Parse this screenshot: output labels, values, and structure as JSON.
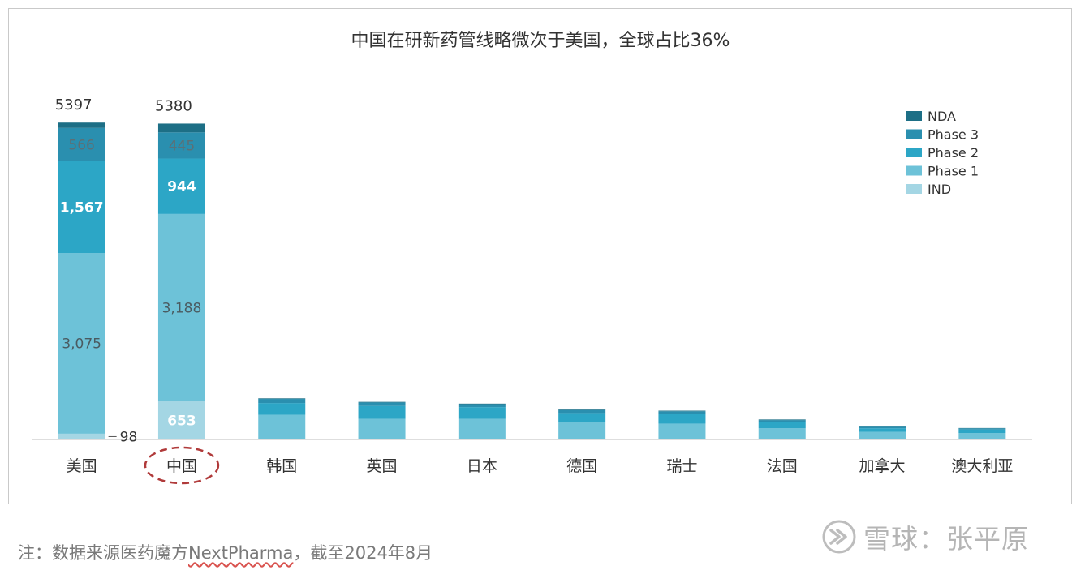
{
  "chart_data": {
    "type": "bar",
    "stacked": true,
    "title": "中国在研新药管线略微次于美国，全球占比36%",
    "categories": [
      "美国",
      "中国",
      "韩国",
      "英国",
      "日本",
      "德国",
      "瑞士",
      "法国",
      "加拿大",
      "澳大利亚"
    ],
    "series": [
      {
        "name": "IND",
        "color": "#a4d6e4",
        "values": [
          98,
          653,
          0,
          0,
          0,
          0,
          0,
          0,
          0,
          0
        ]
      },
      {
        "name": "Phase 1",
        "color": "#6dc2d8",
        "values": [
          3075,
          3188,
          420,
          350,
          350,
          300,
          270,
          190,
          130,
          110
        ]
      },
      {
        "name": "Phase 2",
        "color": "#2ca6c6",
        "values": [
          1567,
          944,
          200,
          220,
          200,
          150,
          160,
          110,
          60,
          60
        ]
      },
      {
        "name": "Phase 3",
        "color": "#2a8faf",
        "values": [
          566,
          445,
          70,
          60,
          50,
          50,
          50,
          30,
          25,
          20
        ]
      },
      {
        "name": "NDA",
        "color": "#1d6f86",
        "values": [
          91,
          150,
          10,
          10,
          10,
          10,
          10,
          10,
          5,
          5
        ]
      }
    ],
    "totals": [
      5397,
      5380,
      null,
      null,
      null,
      null,
      null,
      null,
      null,
      null
    ],
    "total_labels": [
      "5397",
      "5380"
    ],
    "segment_labels": {
      "美国": {
        "IND": "98",
        "Phase 1": "3,075",
        "Phase 2": "1,567",
        "Phase 3": "566"
      },
      "中国": {
        "IND": "653",
        "Phase 1": "3,188",
        "Phase 2": "944",
        "Phase 3": "445"
      }
    },
    "highlighted_category": "中国",
    "legend_position": "top-right",
    "ylim": [
      0,
      5400
    ],
    "grid": false
  },
  "footnote": {
    "prefix": "注：数据来源医药魔方",
    "underlined": "NextPharma",
    "suffix": "，截至2024年8月"
  },
  "watermark": {
    "text": "雪球：张平原",
    "icon": "xueqiu-logo-icon"
  }
}
